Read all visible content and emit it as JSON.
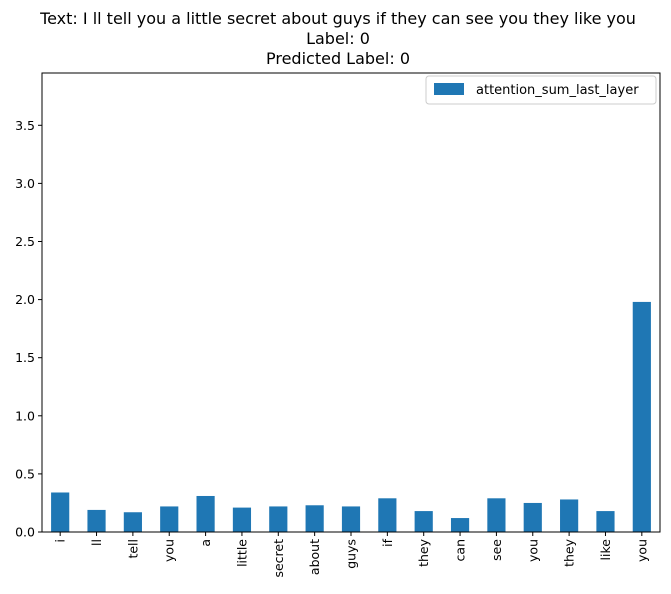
{
  "chart_data": {
    "type": "bar",
    "title_lines": [
      "Text: I ll tell you a little secret about guys if they can see you they like you",
      "Label: 0",
      "Predicted Label: 0"
    ],
    "categories": [
      "i",
      "ll",
      "tell",
      "you",
      "a",
      "little",
      "secret",
      "about",
      "guys",
      "if",
      "they",
      "can",
      "see",
      "you",
      "they",
      "like",
      "you"
    ],
    "series": [
      {
        "name": "attention_sum_last_layer",
        "values": [
          0.34,
          0.19,
          0.17,
          0.22,
          0.31,
          0.21,
          0.22,
          0.23,
          0.22,
          0.29,
          0.18,
          0.12,
          0.29,
          0.25,
          0.28,
          0.18,
          1.98
        ],
        "color": "#1f77b4"
      }
    ],
    "xlabel": "",
    "ylabel": "",
    "ylim": [
      0,
      3.95
    ],
    "yticks": [
      0.0,
      0.5,
      1.0,
      1.5,
      2.0,
      2.5,
      3.0,
      3.5
    ],
    "ytick_labels": [
      "0.0",
      "0.5",
      "1.0",
      "1.5",
      "2.0",
      "2.5",
      "3.0",
      "3.5"
    ],
    "grid": false,
    "legend_position": "top-right"
  }
}
